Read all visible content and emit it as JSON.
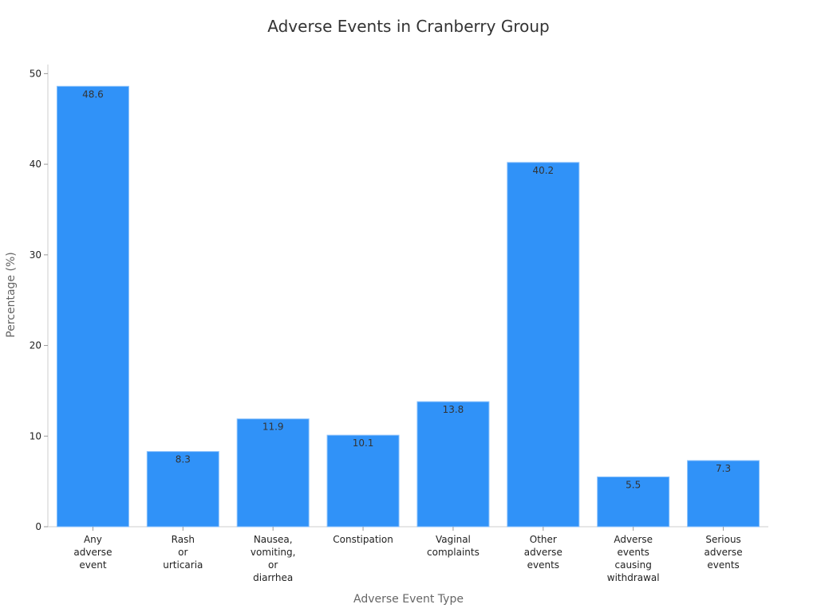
{
  "chart_data": {
    "type": "bar",
    "title": "Adverse Events in Cranberry Group",
    "x_label": "Adverse Event Type",
    "y_label": "Percentage (%)",
    "categories": [
      "Any\nadverse\nevent",
      "Rash\nor\nurticaria",
      "Nausea,\nvomiting,\nor\ndiarrhea",
      "Constipation",
      "Vaginal\ncomplaints",
      "Other\nadverse\nevents",
      "Adverse\nevents\ncausing\nwithdrawal",
      "Serious\nadverse\nevents"
    ],
    "values": [
      48.6,
      8.3,
      11.9,
      10.1,
      13.8,
      40.2,
      5.5,
      7.3
    ],
    "color": "#3092f8",
    "ylim": [
      0,
      51
    ],
    "yticks": [
      0,
      10,
      20,
      30,
      40,
      50
    ],
    "grid": false
  }
}
